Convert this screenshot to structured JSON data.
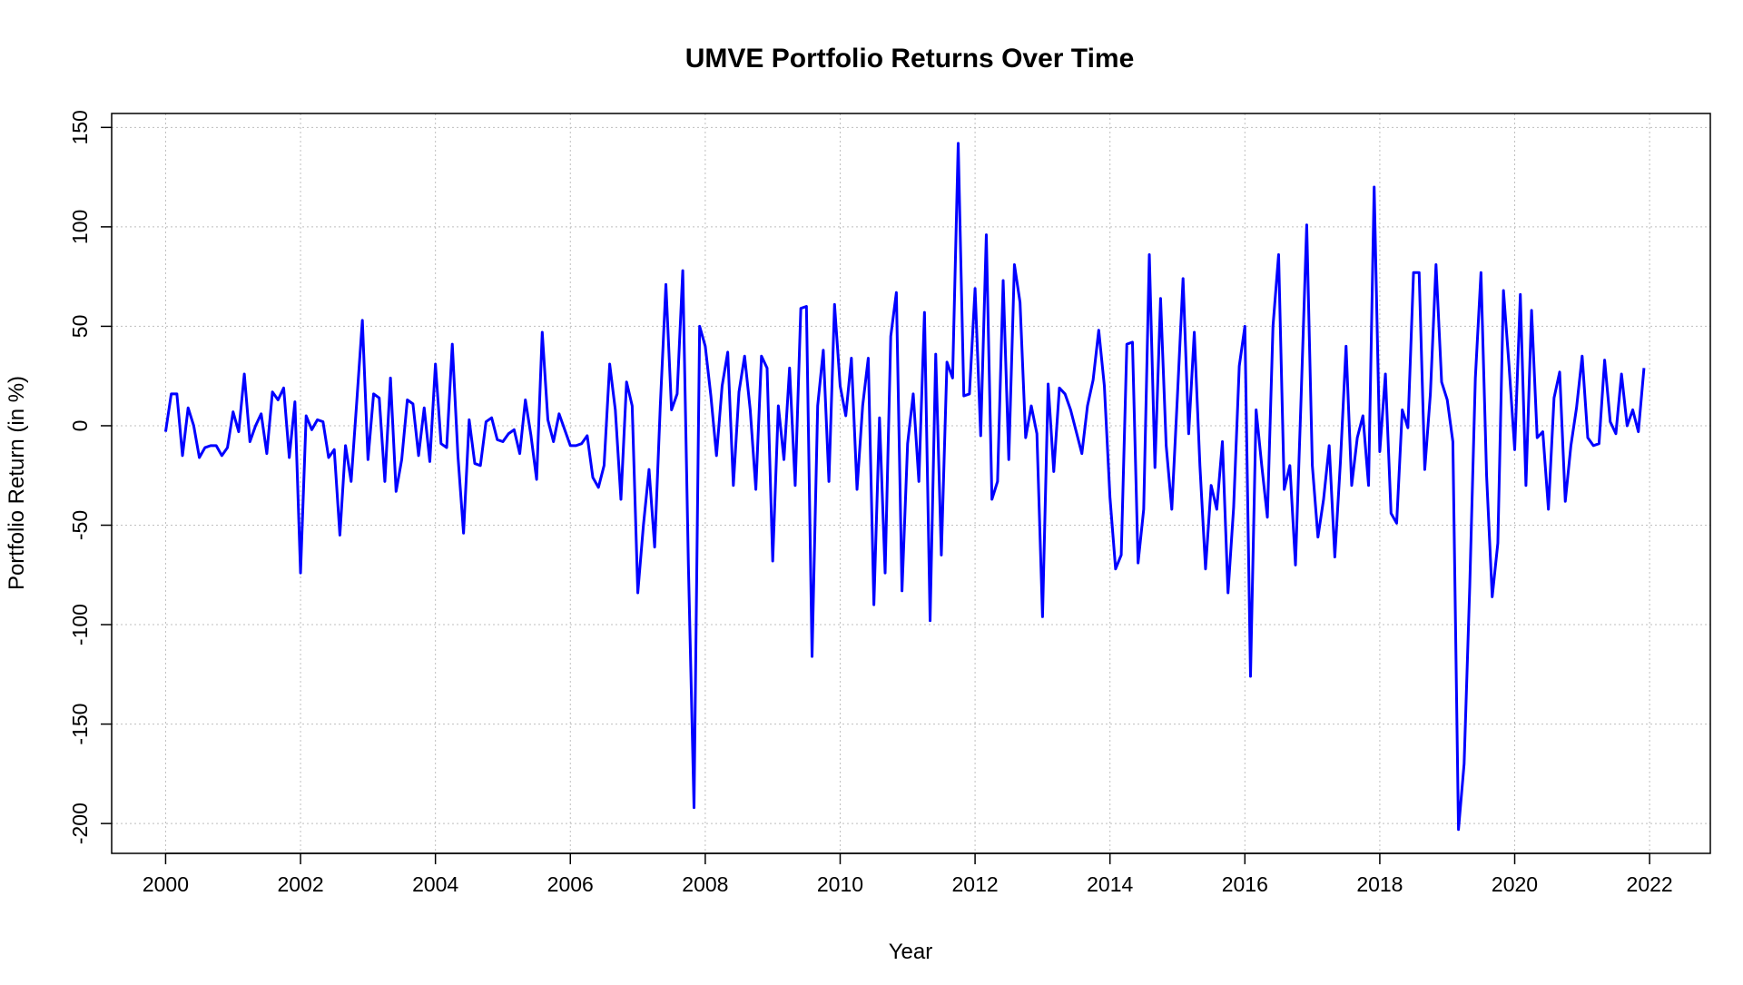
{
  "chart_data": {
    "type": "line",
    "title": "UMVE Portfolio Returns Over Time",
    "xlabel": "Year",
    "ylabel": "Portfolio Return (in %)",
    "xlim": [
      1999.2,
      2022.9
    ],
    "ylim": [
      -215,
      157
    ],
    "x_ticks": [
      2000,
      2002,
      2004,
      2006,
      2008,
      2010,
      2012,
      2014,
      2016,
      2018,
      2020,
      2022
    ],
    "x_tick_labels": [
      "2000",
      "2002",
      "2004",
      "2006",
      "2008",
      "2010",
      "2012",
      "2014",
      "2016",
      "2018",
      "2020",
      "2022"
    ],
    "y_ticks": [
      -200,
      -150,
      -100,
      -50,
      0,
      50,
      100,
      150
    ],
    "y_tick_labels": [
      "-200",
      "-150",
      "-100",
      "-50",
      "0",
      "50",
      "100",
      "150"
    ],
    "grid": true,
    "line_color": "#0000ff",
    "grid_color": "#bfbfbf",
    "series": [
      {
        "x_start": 2000.0,
        "x_step": 0.083333,
        "values": [
          -3,
          16,
          16,
          -15,
          9,
          0,
          -16,
          -11,
          -10,
          -10,
          -15,
          -11,
          7,
          -3,
          26,
          -8,
          0,
          6,
          -14,
          17,
          13,
          19,
          -16,
          12,
          -74,
          5,
          -2,
          3,
          2,
          -16,
          -12,
          -55,
          -10,
          -28,
          12,
          53,
          -17,
          16,
          14,
          -28,
          24,
          -33,
          -17,
          13,
          11,
          -15,
          9,
          -18,
          31,
          -9,
          -11,
          41,
          -15,
          -54,
          3,
          -19,
          -20,
          2,
          4,
          -7,
          -8,
          -4,
          -2,
          -14,
          13,
          -5,
          -27,
          47,
          3,
          -8,
          6,
          -2,
          -10,
          -10,
          -9,
          -5,
          -26,
          -31,
          -20,
          31,
          8,
          -37,
          22,
          10,
          -84,
          -50,
          -22,
          -61,
          10,
          71,
          8,
          16,
          78,
          -70,
          -192,
          50,
          40,
          15,
          -15,
          20,
          37,
          -30,
          17,
          35,
          8,
          -32,
          35,
          29,
          -68,
          10,
          -17,
          29,
          -30,
          59,
          60,
          -116,
          10,
          38,
          -28,
          61,
          20,
          5,
          34,
          -32,
          10,
          34,
          -90,
          4,
          -74,
          45,
          67,
          -83,
          -9,
          16,
          -28,
          57,
          -98,
          36,
          -65,
          32,
          24,
          142,
          15,
          16,
          69,
          -5,
          96,
          -37,
          -28,
          73,
          -17,
          81,
          62,
          -6,
          10,
          -4,
          -96,
          21,
          -23,
          19,
          16,
          8,
          -3,
          -14,
          10,
          23,
          48,
          20,
          -36,
          -72,
          -65,
          41,
          42,
          -69,
          -42,
          86,
          -21,
          64,
          -10,
          -42,
          15,
          74,
          -4,
          47,
          -20,
          -72,
          -30,
          -42,
          -8,
          -84,
          -41,
          30,
          50,
          -126,
          8,
          -20,
          -46,
          50,
          86,
          -32,
          -20,
          -70,
          14,
          101,
          -20,
          -56,
          -37,
          -10,
          -66,
          -18,
          40,
          -30,
          -6,
          5,
          -30,
          120,
          -13,
          26,
          -44,
          -49,
          8,
          -1,
          77,
          77,
          -22,
          16,
          81,
          22,
          13,
          -8,
          -203,
          -170,
          -81,
          24,
          77,
          -25,
          -86,
          -59,
          68,
          30,
          -12,
          66,
          -30,
          58,
          -6,
          -3,
          -42,
          14,
          27,
          -38,
          -10,
          9,
          35,
          -6,
          -10,
          -9,
          33,
          2,
          -4,
          26,
          0,
          8,
          -3,
          29
        ]
      }
    ]
  }
}
